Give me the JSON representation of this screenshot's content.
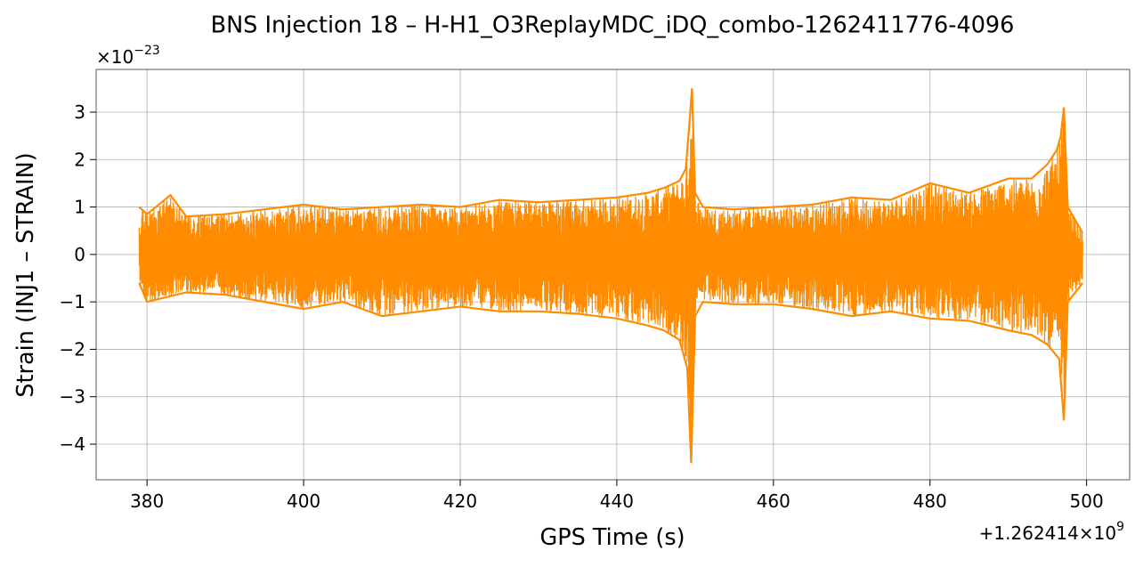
{
  "chart_data": {
    "type": "line",
    "title": "BNS Injection 18 – H-H1_O3ReplayMDC_iDQ_combo-1262411776-4096",
    "xlabel": "GPS Time (s)",
    "ylabel": "Strain (INJ1 – STRAIN)",
    "x_offset_label": "+1.262414×10",
    "x_offset_exponent": "9",
    "y_multiplier_label": "×10",
    "y_multiplier_exponent": "−23",
    "xlim": [
      373.5,
      505.5
    ],
    "ylim": [
      -4.75,
      3.9
    ],
    "xticks": [
      380,
      400,
      420,
      440,
      460,
      480,
      500
    ],
    "xtick_labels": [
      "380",
      "400",
      "420",
      "440",
      "460",
      "480",
      "500"
    ],
    "yticks": [
      -4,
      -3,
      -2,
      -1,
      0,
      1,
      2,
      3
    ],
    "ytick_labels": [
      "−4",
      "−3",
      "−2",
      "−1",
      "0",
      "1",
      "2",
      "3"
    ],
    "grid": true,
    "series_color": "#ff8c00",
    "series": [
      {
        "x_range": [
          379.0,
          499.5
        ],
        "envelope_max": [
          [
            379.0,
            1.0
          ],
          [
            380.0,
            0.85
          ],
          [
            383.0,
            1.25
          ],
          [
            385.0,
            0.8
          ],
          [
            390.0,
            0.85
          ],
          [
            395.0,
            0.95
          ],
          [
            400.0,
            1.05
          ],
          [
            405.0,
            0.95
          ],
          [
            410.0,
            1.0
          ],
          [
            415.0,
            1.05
          ],
          [
            420.0,
            1.0
          ],
          [
            425.0,
            1.15
          ],
          [
            430.0,
            1.1
          ],
          [
            435.0,
            1.15
          ],
          [
            440.0,
            1.2
          ],
          [
            444.0,
            1.3
          ],
          [
            446.0,
            1.4
          ],
          [
            448.0,
            1.55
          ],
          [
            448.8,
            1.8
          ],
          [
            449.2,
            2.6
          ],
          [
            449.6,
            3.5
          ],
          [
            450.0,
            1.3
          ],
          [
            451.0,
            1.0
          ],
          [
            455.0,
            0.95
          ],
          [
            460.0,
            1.0
          ],
          [
            465.0,
            1.05
          ],
          [
            470.0,
            1.2
          ],
          [
            475.0,
            1.15
          ],
          [
            480.0,
            1.5
          ],
          [
            485.0,
            1.3
          ],
          [
            490.0,
            1.6
          ],
          [
            493.0,
            1.6
          ],
          [
            495.0,
            1.9
          ],
          [
            496.2,
            2.2
          ],
          [
            496.7,
            2.5
          ],
          [
            497.1,
            3.1
          ],
          [
            497.6,
            1.0
          ],
          [
            499.5,
            0.45
          ]
        ],
        "envelope_min": [
          [
            379.0,
            -0.6
          ],
          [
            380.0,
            -1.0
          ],
          [
            385.0,
            -0.8
          ],
          [
            390.0,
            -0.85
          ],
          [
            395.0,
            -1.0
          ],
          [
            400.0,
            -1.15
          ],
          [
            405.0,
            -1.0
          ],
          [
            410.0,
            -1.3
          ],
          [
            415.0,
            -1.2
          ],
          [
            420.0,
            -1.1
          ],
          [
            425.0,
            -1.2
          ],
          [
            430.0,
            -1.2
          ],
          [
            435.0,
            -1.25
          ],
          [
            440.0,
            -1.35
          ],
          [
            444.0,
            -1.5
          ],
          [
            446.0,
            -1.6
          ],
          [
            448.0,
            -1.8
          ],
          [
            449.0,
            -2.4
          ],
          [
            449.5,
            -4.4
          ],
          [
            450.0,
            -1.3
          ],
          [
            451.0,
            -1.0
          ],
          [
            455.0,
            -1.05
          ],
          [
            460.0,
            -1.05
          ],
          [
            465.0,
            -1.15
          ],
          [
            470.0,
            -1.3
          ],
          [
            475.0,
            -1.2
          ],
          [
            480.0,
            -1.35
          ],
          [
            485.0,
            -1.4
          ],
          [
            490.0,
            -1.6
          ],
          [
            493.0,
            -1.7
          ],
          [
            495.0,
            -1.9
          ],
          [
            496.5,
            -2.2
          ],
          [
            497.1,
            -3.5
          ],
          [
            497.6,
            -1.0
          ],
          [
            499.5,
            -0.6
          ]
        ]
      }
    ]
  }
}
